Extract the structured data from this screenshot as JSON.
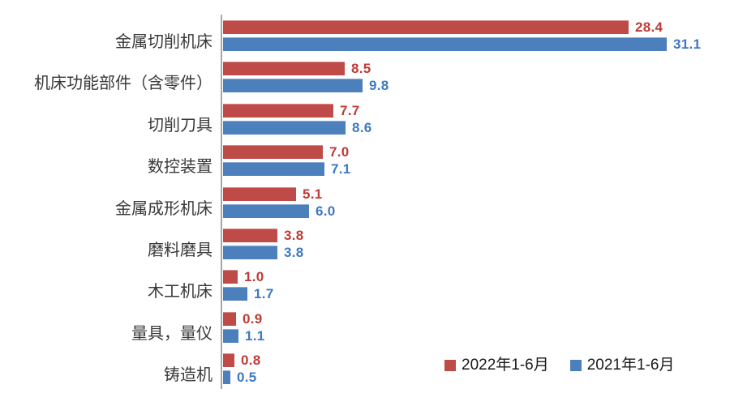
{
  "chart_data": {
    "type": "bar",
    "orientation": "horizontal",
    "title": "",
    "xlabel": "",
    "ylabel": "",
    "xlim": [
      0,
      35
    ],
    "gridlines": false,
    "value_labels_shown": true,
    "legend_position": "inside-bottom-right",
    "categories": [
      "金属切削机床",
      "机床功能部件（含零件）",
      "切削刀具",
      "数控装置",
      "金属成形机床",
      "磨料磨具",
      "木工机床",
      "量具，量仪",
      "铸造机"
    ],
    "series": [
      {
        "name": "2022年1-6月",
        "color": "#bf4b48",
        "label_color": "#c03a35",
        "values": [
          28.4,
          8.5,
          7.7,
          7.0,
          5.1,
          3.8,
          1.0,
          0.9,
          0.8
        ]
      },
      {
        "name": "2021年1-6月",
        "color": "#4c80bc",
        "label_color": "#3d79c4",
        "values": [
          31.1,
          9.8,
          8.6,
          7.1,
          6.0,
          3.8,
          1.7,
          1.1,
          0.5
        ]
      }
    ],
    "colors": {
      "background": "#ffffff",
      "axis_line": "#a6a6a6",
      "category_label": "#383838",
      "legend_text": "#1a1a1a"
    }
  }
}
